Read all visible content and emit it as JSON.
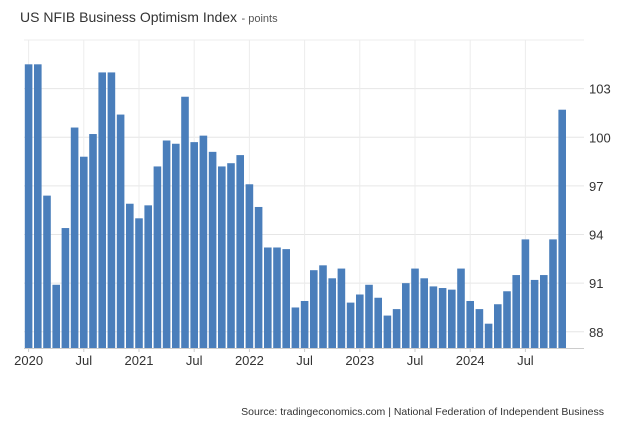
{
  "chart_data": {
    "type": "bar",
    "title": "US NFIB Business Optimism Index",
    "subtitle": "- points",
    "xlabel": "",
    "ylabel": "",
    "ylim": [
      87,
      106
    ],
    "y_ticks": [
      88,
      91,
      94,
      97,
      100,
      103
    ],
    "y_axis_position": "right",
    "grid": true,
    "bar_color": "#4a7ebb",
    "x_tick_labels": [
      {
        "label": "2020",
        "index": 0
      },
      {
        "label": "Jul",
        "index": 6
      },
      {
        "label": "2021",
        "index": 12
      },
      {
        "label": "Jul",
        "index": 18
      },
      {
        "label": "2022",
        "index": 24
      },
      {
        "label": "Jul",
        "index": 30
      },
      {
        "label": "2023",
        "index": 36
      },
      {
        "label": "Jul",
        "index": 42
      },
      {
        "label": "2024",
        "index": 48
      },
      {
        "label": "Jul",
        "index": 54
      }
    ],
    "categories": [
      "Jan 2020",
      "Feb 2020",
      "Mar 2020",
      "Apr 2020",
      "May 2020",
      "Jun 2020",
      "Jul 2020",
      "Aug 2020",
      "Sep 2020",
      "Oct 2020",
      "Nov 2020",
      "Dec 2020",
      "Jan 2021",
      "Feb 2021",
      "Mar 2021",
      "Apr 2021",
      "May 2021",
      "Jun 2021",
      "Jul 2021",
      "Aug 2021",
      "Sep 2021",
      "Oct 2021",
      "Nov 2021",
      "Dec 2021",
      "Jan 2022",
      "Feb 2022",
      "Mar 2022",
      "Apr 2022",
      "May 2022",
      "Jun 2022",
      "Jul 2022",
      "Aug 2022",
      "Sep 2022",
      "Oct 2022",
      "Nov 2022",
      "Dec 2022",
      "Jan 2023",
      "Feb 2023",
      "Mar 2023",
      "Apr 2023",
      "May 2023",
      "Jun 2023",
      "Jul 2023",
      "Aug 2023",
      "Sep 2023",
      "Oct 2023",
      "Nov 2023",
      "Dec 2023",
      "Jan 2024",
      "Feb 2024",
      "Mar 2024",
      "Apr 2024",
      "May 2024",
      "Jun 2024",
      "Jul 2024",
      "Aug 2024",
      "Sep 2024",
      "Oct 2024",
      "Nov 2024"
    ],
    "values": [
      104.5,
      104.5,
      96.4,
      90.9,
      94.4,
      100.6,
      98.8,
      100.2,
      104.0,
      104.0,
      101.4,
      95.9,
      95.0,
      95.8,
      98.2,
      99.8,
      99.6,
      102.5,
      99.7,
      100.1,
      99.1,
      98.2,
      98.4,
      98.9,
      97.1,
      95.7,
      93.2,
      93.2,
      93.1,
      89.5,
      89.9,
      91.8,
      92.1,
      91.3,
      91.9,
      89.8,
      90.3,
      90.9,
      90.1,
      89.0,
      89.4,
      91.0,
      91.9,
      91.3,
      90.8,
      90.7,
      90.6,
      91.9,
      89.9,
      89.4,
      88.5,
      89.7,
      90.5,
      91.5,
      93.7,
      91.2,
      91.5,
      93.7,
      101.7
    ]
  },
  "source": "Source: tradingeconomics.com | National Federation of Independent Business"
}
